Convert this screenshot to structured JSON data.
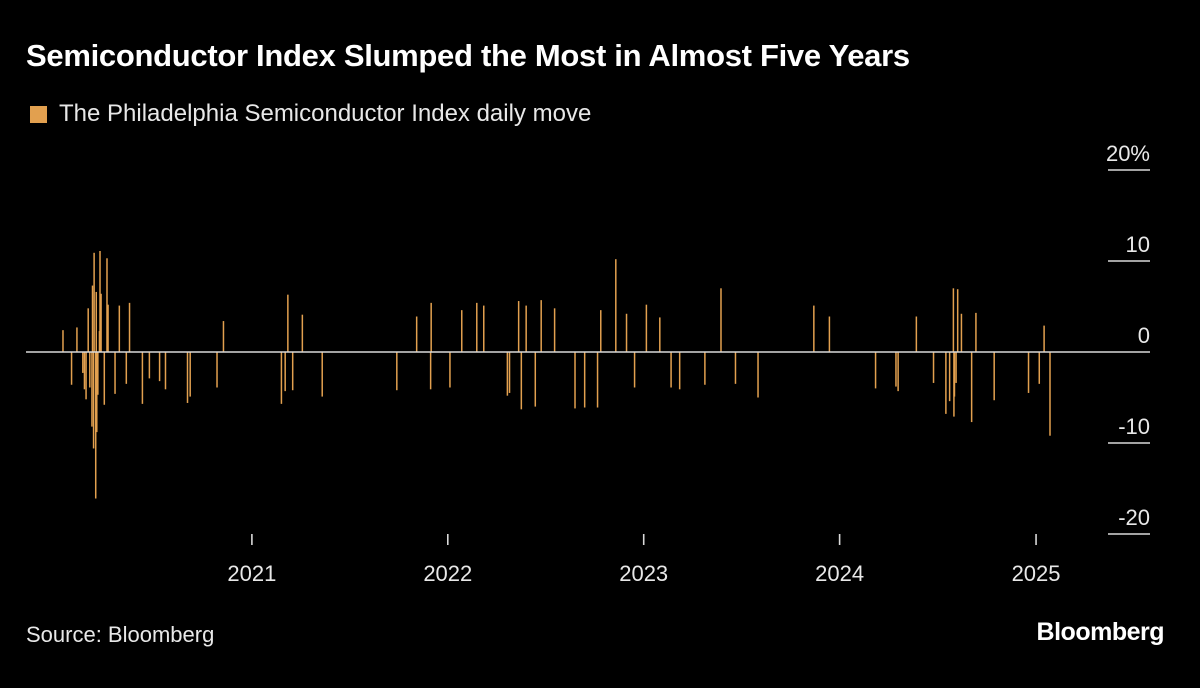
{
  "title": "Semiconductor Index Slumped the Most in Almost Five Years",
  "source": "Source: Bloomberg",
  "brand": "Bloomberg",
  "colors": {
    "background": "#000000",
    "series": "#e2a04f",
    "zero_line": "#d9d9d9",
    "text": "#ffffff"
  },
  "chart_data": {
    "type": "bar",
    "legend": "top-left",
    "grid": false,
    "x_range": [
      "2020-01-02",
      "2025-01-27"
    ],
    "ylim": [
      -20,
      20
    ],
    "y_ticks": [
      {
        "value": 20,
        "label": "20%"
      },
      {
        "value": 10,
        "label": "10"
      },
      {
        "value": 0,
        "label": "0"
      },
      {
        "value": -10,
        "label": "-10"
      },
      {
        "value": -20,
        "label": "-20"
      }
    ],
    "x_ticks": [
      {
        "date": "2021-01-01",
        "label": "2021"
      },
      {
        "date": "2022-01-01",
        "label": "2022"
      },
      {
        "date": "2023-01-01",
        "label": "2023"
      },
      {
        "date": "2024-01-01",
        "label": "2024"
      },
      {
        "date": "2025-01-01",
        "label": "2025"
      }
    ],
    "series": [
      {
        "name": "The Philadelphia Semiconductor Index daily move",
        "color": "#e2a04f",
        "points": [
          [
            "2020-01-15",
            2.4
          ],
          [
            "2020-01-31",
            -3.6
          ],
          [
            "2020-02-10",
            2.7
          ],
          [
            "2020-02-21",
            -2.3
          ],
          [
            "2020-02-24",
            -4.1
          ],
          [
            "2020-02-27",
            -5.2
          ],
          [
            "2020-03-02",
            4.8
          ],
          [
            "2020-03-05",
            -3.9
          ],
          [
            "2020-03-09",
            -8.2
          ],
          [
            "2020-03-10",
            7.3
          ],
          [
            "2020-03-12",
            -10.6
          ],
          [
            "2020-03-13",
            10.9
          ],
          [
            "2020-03-16",
            -16.1
          ],
          [
            "2020-03-17",
            6.6
          ],
          [
            "2020-03-18",
            -8.8
          ],
          [
            "2020-03-20",
            -4.7
          ],
          [
            "2020-03-23",
            2.3
          ],
          [
            "2020-03-24",
            11.1
          ],
          [
            "2020-03-26",
            6.4
          ],
          [
            "2020-04-01",
            -5.8
          ],
          [
            "2020-04-06",
            10.3
          ],
          [
            "2020-04-08",
            5.2
          ],
          [
            "2020-04-21",
            -4.6
          ],
          [
            "2020-04-29",
            5.1
          ],
          [
            "2020-05-12",
            -3.5
          ],
          [
            "2020-05-18",
            5.4
          ],
          [
            "2020-06-11",
            -5.7
          ],
          [
            "2020-06-24",
            -2.9
          ],
          [
            "2020-07-13",
            -3.2
          ],
          [
            "2020-07-24",
            -4.1
          ],
          [
            "2020-09-03",
            -5.6
          ],
          [
            "2020-09-08",
            -4.9
          ],
          [
            "2020-10-28",
            -3.9
          ],
          [
            "2020-11-09",
            3.4
          ],
          [
            "2021-02-25",
            -5.7
          ],
          [
            "2021-03-04",
            -4.3
          ],
          [
            "2021-03-09",
            6.3
          ],
          [
            "2021-03-18",
            -4.2
          ],
          [
            "2021-04-05",
            4.1
          ],
          [
            "2021-05-12",
            -4.9
          ],
          [
            "2021-09-28",
            -4.2
          ],
          [
            "2021-11-04",
            3.9
          ],
          [
            "2021-11-30",
            -4.1
          ],
          [
            "2021-12-01",
            5.4
          ],
          [
            "2022-01-05",
            -3.9
          ],
          [
            "2022-01-27",
            4.6
          ],
          [
            "2022-02-24",
            5.4
          ],
          [
            "2022-03-09",
            5.1
          ],
          [
            "2022-04-22",
            -4.8
          ],
          [
            "2022-04-26",
            -4.5
          ],
          [
            "2022-05-13",
            5.6
          ],
          [
            "2022-05-18",
            -6.3
          ],
          [
            "2022-05-27",
            5.1
          ],
          [
            "2022-06-13",
            -6.0
          ],
          [
            "2022-06-24",
            5.7
          ],
          [
            "2022-07-19",
            4.8
          ],
          [
            "2022-08-26",
            -6.2
          ],
          [
            "2022-09-13",
            -6.1
          ],
          [
            "2022-10-07",
            -6.1
          ],
          [
            "2022-10-13",
            4.6
          ],
          [
            "2022-11-10",
            10.2
          ],
          [
            "2022-11-30",
            4.2
          ],
          [
            "2022-12-15",
            -3.9
          ],
          [
            "2023-01-06",
            5.2
          ],
          [
            "2023-01-31",
            3.8
          ],
          [
            "2023-02-21",
            -3.9
          ],
          [
            "2023-03-09",
            -4.1
          ],
          [
            "2023-04-25",
            -3.6
          ],
          [
            "2023-05-25",
            7.0
          ],
          [
            "2023-06-21",
            -3.5
          ],
          [
            "2023-08-02",
            -5.0
          ],
          [
            "2023-11-14",
            5.1
          ],
          [
            "2023-12-13",
            3.9
          ],
          [
            "2024-03-08",
            -4.0
          ],
          [
            "2024-04-15",
            -3.8
          ],
          [
            "2024-04-19",
            -4.3
          ],
          [
            "2024-05-23",
            3.9
          ],
          [
            "2024-06-24",
            -3.4
          ],
          [
            "2024-07-17",
            -6.8
          ],
          [
            "2024-07-24",
            -5.4
          ],
          [
            "2024-07-31",
            7.0
          ],
          [
            "2024-08-01",
            -7.1
          ],
          [
            "2024-08-02",
            -4.9
          ],
          [
            "2024-08-05",
            -3.4
          ],
          [
            "2024-08-08",
            6.9
          ],
          [
            "2024-08-15",
            4.2
          ],
          [
            "2024-09-03",
            -7.7
          ],
          [
            "2024-09-11",
            4.3
          ],
          [
            "2024-10-15",
            -5.3
          ],
          [
            "2024-12-18",
            -4.5
          ],
          [
            "2025-01-07",
            -3.5
          ],
          [
            "2025-01-16",
            2.9
          ],
          [
            "2025-01-27",
            -9.2
          ]
        ]
      }
    ]
  }
}
